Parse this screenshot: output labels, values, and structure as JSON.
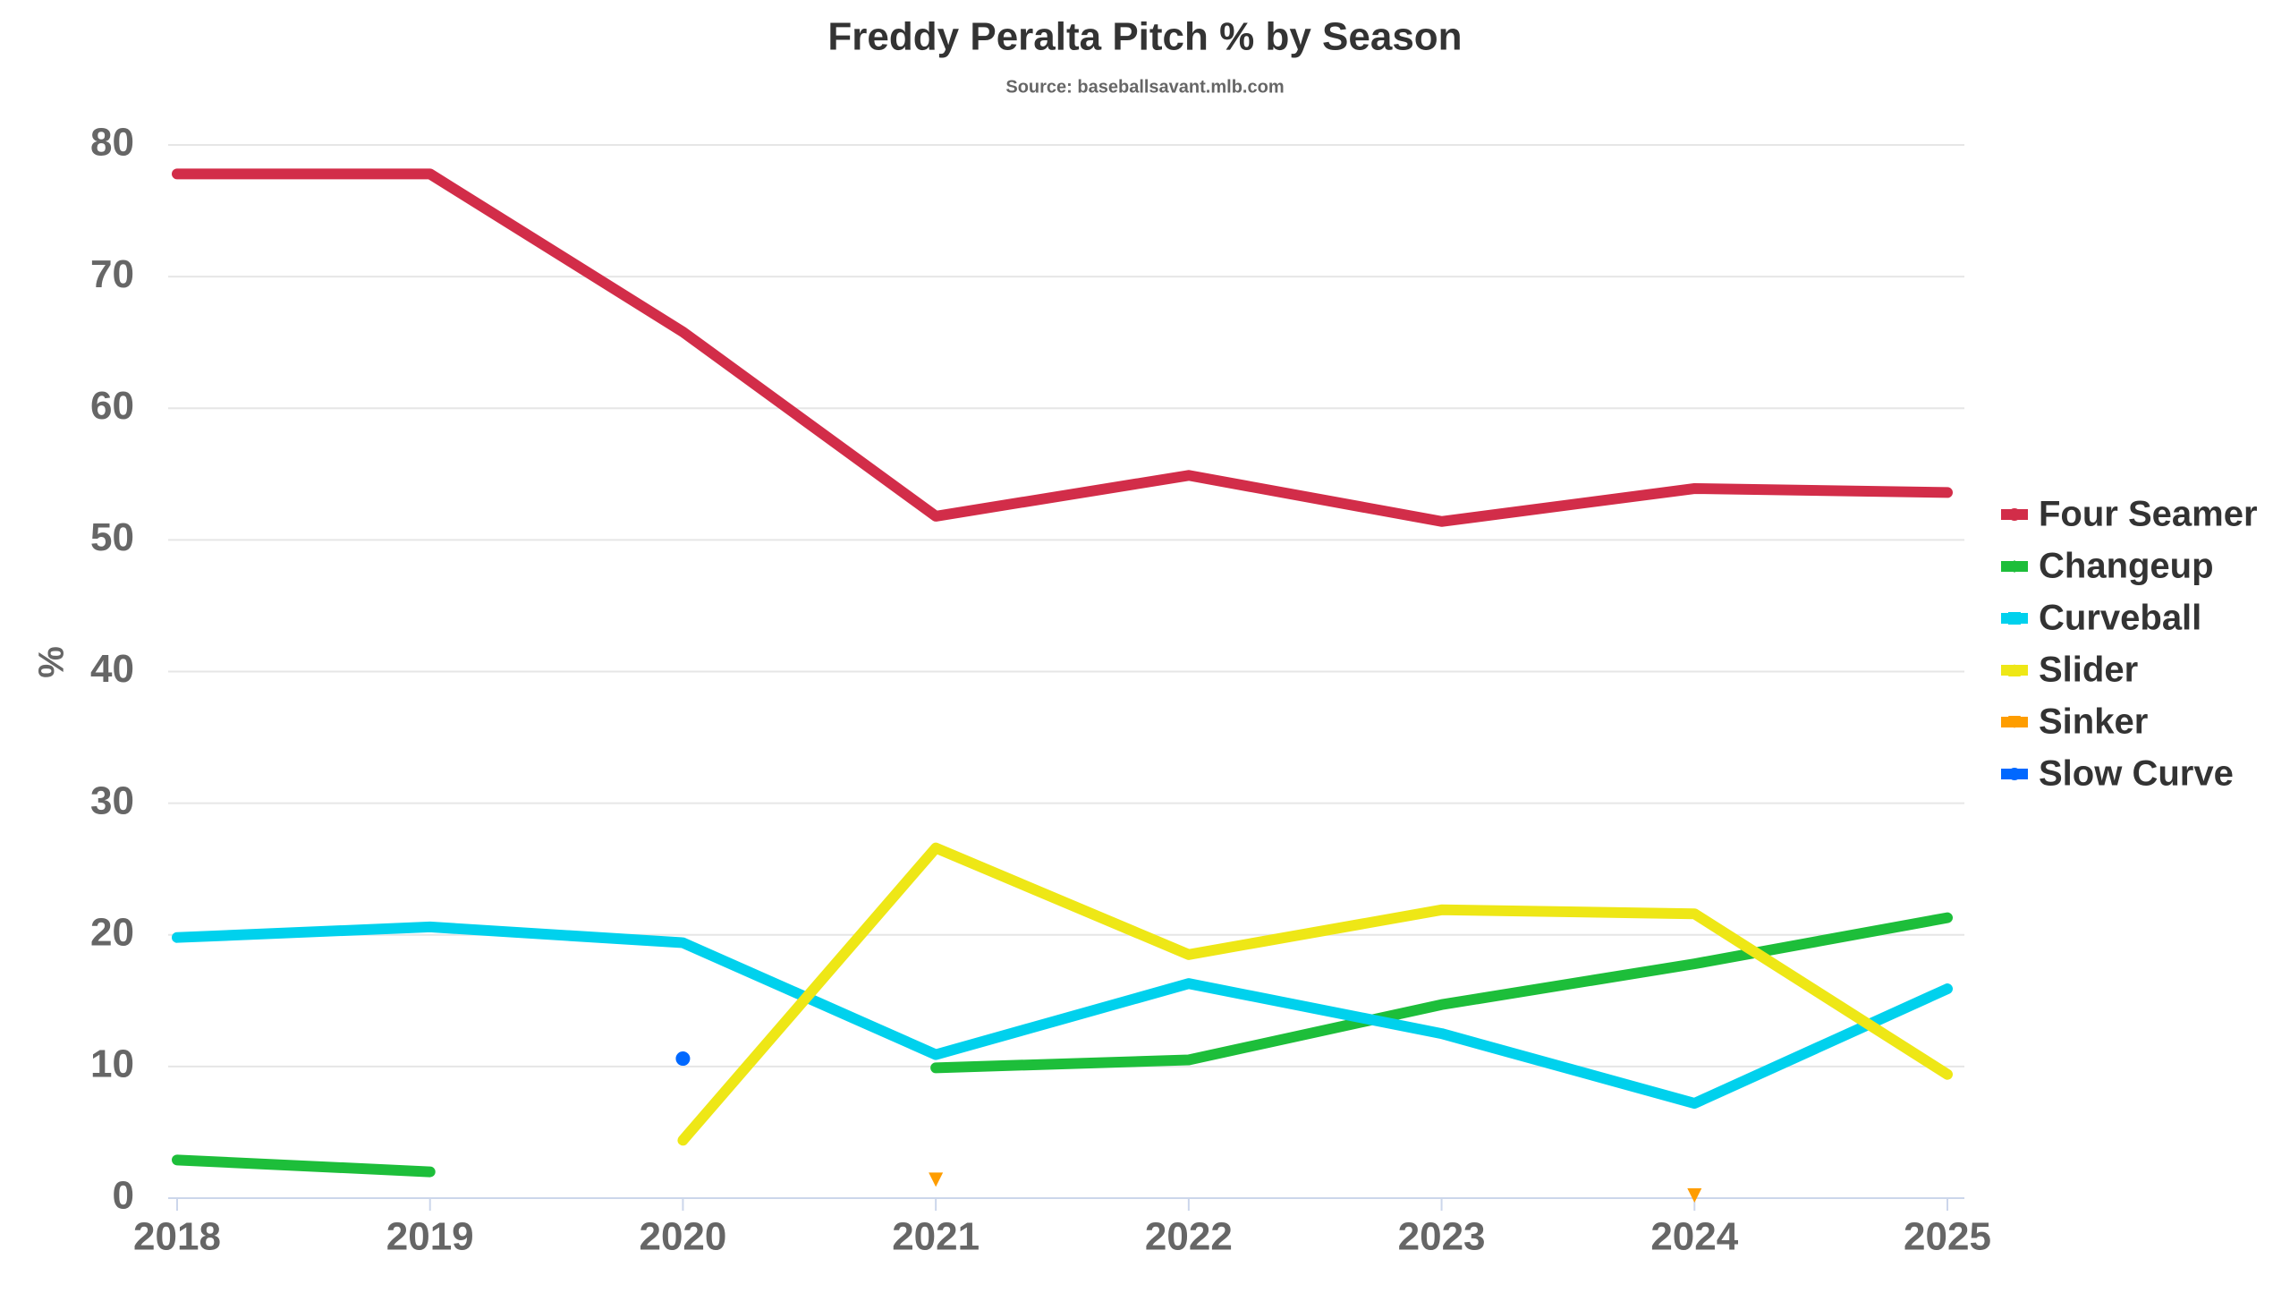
{
  "chart_data": {
    "type": "line",
    "title": "Freddy Peralta Pitch % by Season",
    "subtitle": "Source: baseballsavant.mlb.com",
    "y_label": "%",
    "categories": [
      "2018",
      "2019",
      "2020",
      "2021",
      "2022",
      "2023",
      "2024",
      "2025"
    ],
    "series": [
      {
        "name": "Four Seamer",
        "color": "#d22d49",
        "marker": "circle",
        "values": [
          77.8,
          77.8,
          65.8,
          51.8,
          54.9,
          51.4,
          53.9,
          53.6
        ]
      },
      {
        "name": "Changeup",
        "color": "#1dbe3a",
        "marker": "diamond",
        "values": [
          2.9,
          2.0,
          null,
          9.9,
          10.5,
          14.7,
          17.8,
          21.3
        ]
      },
      {
        "name": "Curveball",
        "color": "#00d1ed",
        "marker": "square",
        "values": [
          19.8,
          20.6,
          19.4,
          10.9,
          16.3,
          12.5,
          7.2,
          15.9
        ]
      },
      {
        "name": "Slider",
        "color": "#eee716",
        "marker": "triangle",
        "values": [
          null,
          null,
          4.4,
          26.6,
          18.5,
          21.9,
          21.6,
          9.4
        ]
      },
      {
        "name": "Sinker",
        "color": "#fe9d00",
        "marker": "triangle-down",
        "values": [
          null,
          null,
          null,
          1.4,
          null,
          null,
          0.2,
          null
        ]
      },
      {
        "name": "Slow Curve",
        "color": "#0068ff",
        "marker": "circle",
        "values": [
          null,
          null,
          10.6,
          null,
          null,
          null,
          null,
          null
        ]
      }
    ],
    "ylim": [
      0,
      80
    ],
    "yticks": [
      0,
      10,
      20,
      30,
      40,
      50,
      60,
      70,
      80
    ],
    "grid": true,
    "legend": "right"
  }
}
